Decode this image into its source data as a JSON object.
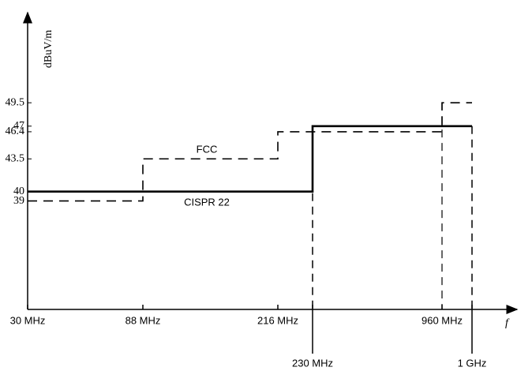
{
  "chart_data": {
    "type": "step",
    "ylabel": "dBuV/m",
    "x": [
      30,
      88,
      216,
      230,
      960,
      1000
    ],
    "xticks": [
      {
        "value": 30,
        "label": "30 MHz"
      },
      {
        "value": 88,
        "label": "88 MHz"
      },
      {
        "value": 216,
        "label": "216 MHz"
      },
      {
        "value": 230,
        "label": "230 MHz"
      },
      {
        "value": 960,
        "label": "960 MHz"
      },
      {
        "value": 1000,
        "label": "1 GHz"
      }
    ],
    "xaxis_label": "f",
    "ylim": [
      27.4,
      58.8
    ],
    "yticks": [
      39,
      40,
      43.5,
      46.4,
      47,
      49.5
    ],
    "series": [
      {
        "name": "FCC",
        "color": "#000000",
        "dash": true,
        "values": [
          39,
          43.5,
          46.4,
          46.4,
          49.5,
          49.5
        ]
      },
      {
        "name": "CISPR 22",
        "color": "#000000",
        "dash": false,
        "values": [
          40,
          40,
          40,
          47,
          47,
          47
        ]
      }
    ]
  }
}
